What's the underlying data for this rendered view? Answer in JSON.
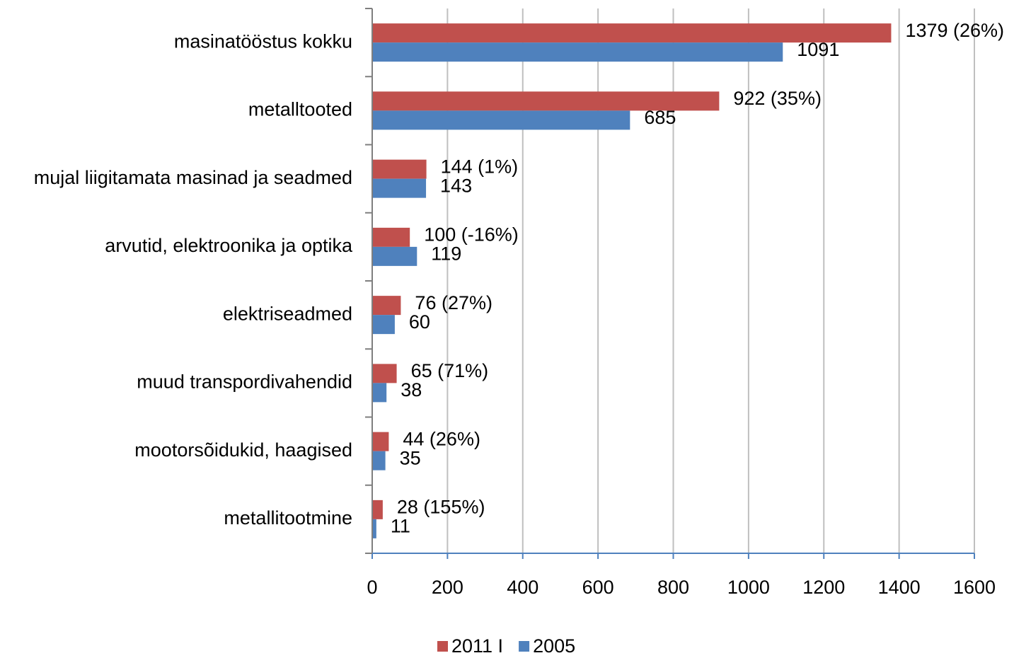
{
  "chart_data": {
    "type": "hbar",
    "categories": [
      "masinatööstus kokku",
      "metalltooted",
      "mujal liigitamata masinad ja seadmed",
      "arvutid, elektroonika ja optika",
      "elektriseadmed",
      "muud transpordivahendid",
      "mootorsõidukid, haagised",
      "metallitootmine"
    ],
    "series": [
      {
        "name": "2011 I",
        "color": "#c0504d",
        "values": [
          1379,
          922,
          144,
          100,
          76,
          65,
          44,
          28
        ],
        "value_labels": [
          "1379 (26%)",
          "922 (35%)",
          "144 (1%)",
          "100 (-16%)",
          "76 (27%)",
          "65 (71%)",
          "44 (26%)",
          "28 (155%)"
        ]
      },
      {
        "name": "2005",
        "color": "#4f81bd",
        "values": [
          1091,
          685,
          143,
          119,
          60,
          38,
          35,
          11
        ]
      }
    ],
    "xlim": [
      0,
      1600
    ],
    "xticks": [
      0,
      200,
      400,
      600,
      800,
      1000,
      1200,
      1400,
      1600
    ],
    "grid": true,
    "legend": "bottom"
  }
}
